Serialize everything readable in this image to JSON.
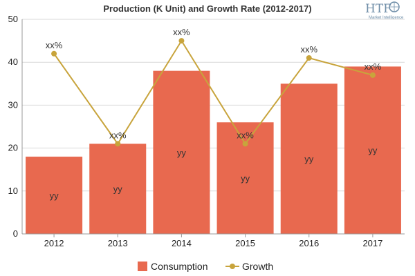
{
  "logo": {
    "text": "HTF",
    "subtitle": "Market Intelligence"
  },
  "chart_data": {
    "type": "bar",
    "title": "Production (K Unit) and Growth Rate (2012-2017)",
    "categories": [
      "2012",
      "2013",
      "2014",
      "2015",
      "2016",
      "2017"
    ],
    "ylim": [
      0,
      50
    ],
    "yticks": [
      0,
      10,
      20,
      30,
      40,
      50
    ],
    "grid": true,
    "legend_position": "bottom",
    "series": [
      {
        "name": "Consumption",
        "kind": "bar",
        "color": "#e8694f",
        "values": [
          18,
          21,
          38,
          26,
          35,
          39
        ],
        "labels": [
          "yy",
          "yy",
          "yy",
          "yy",
          "yy",
          "yy"
        ]
      },
      {
        "name": "Growth",
        "kind": "line",
        "color": "#c8a43c",
        "values": [
          42,
          21,
          45,
          21,
          41,
          37
        ],
        "labels": [
          "xx%",
          "xx%",
          "xx%",
          "xx%",
          "xx%",
          "xx%"
        ]
      }
    ]
  }
}
